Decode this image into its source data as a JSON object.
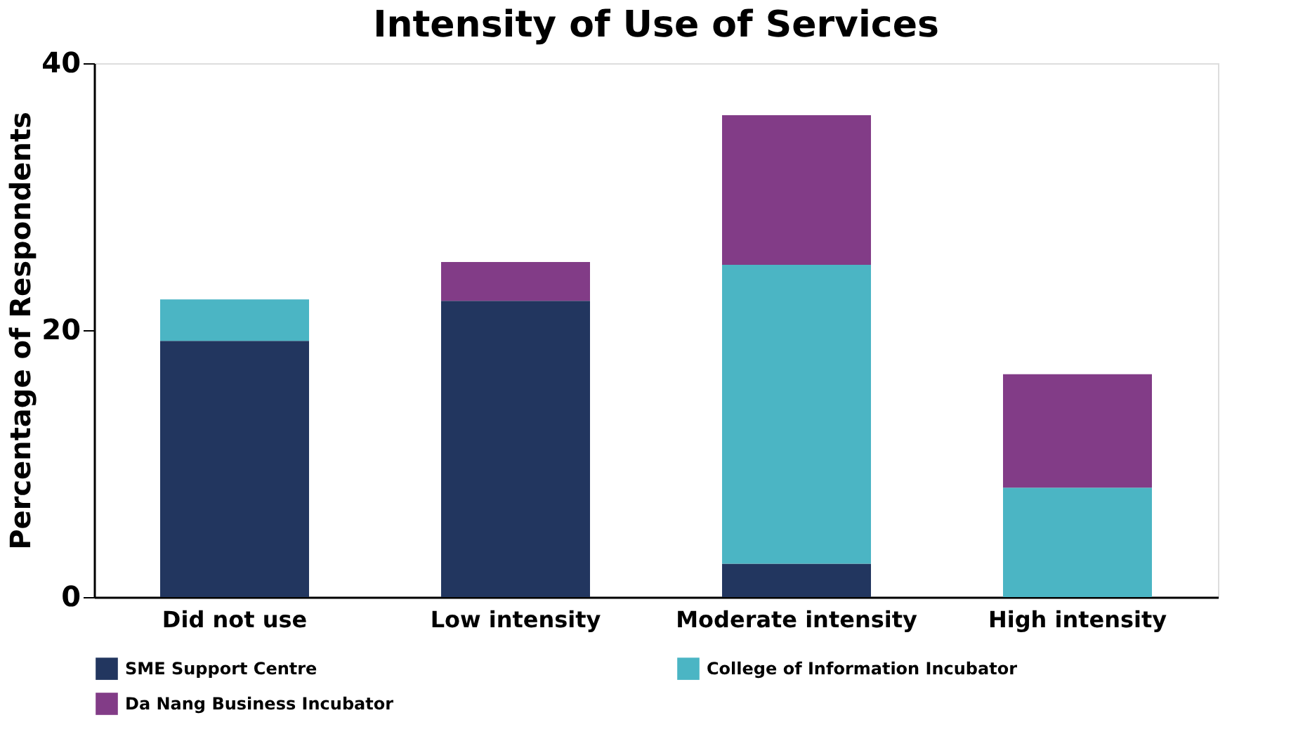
{
  "chart_data": {
    "type": "bar",
    "title": "Intensity of Use of Services",
    "ylabel": "Percentage of Respondents",
    "categories": [
      "Did not use",
      "Low intensity",
      "Moderate intensity",
      "High intensity"
    ],
    "stacked": true,
    "ylim": [
      0,
      40
    ],
    "yticks": [
      0,
      20,
      40
    ],
    "grid": false,
    "legend": "bottom",
    "series": [
      {
        "name": "SME Support Centre",
        "color": "#22365f",
        "values": [
          19.2,
          22.2,
          2.5,
          0
        ]
      },
      {
        "name": "College of Information Incubator",
        "color": "#4bb5c4",
        "values": [
          3.1,
          0,
          22.4,
          8.2
        ]
      },
      {
        "name": "Da Nang Business Incubator",
        "color": "#823c87",
        "values": [
          0,
          2.9,
          11.2,
          8.5
        ]
      }
    ]
  }
}
